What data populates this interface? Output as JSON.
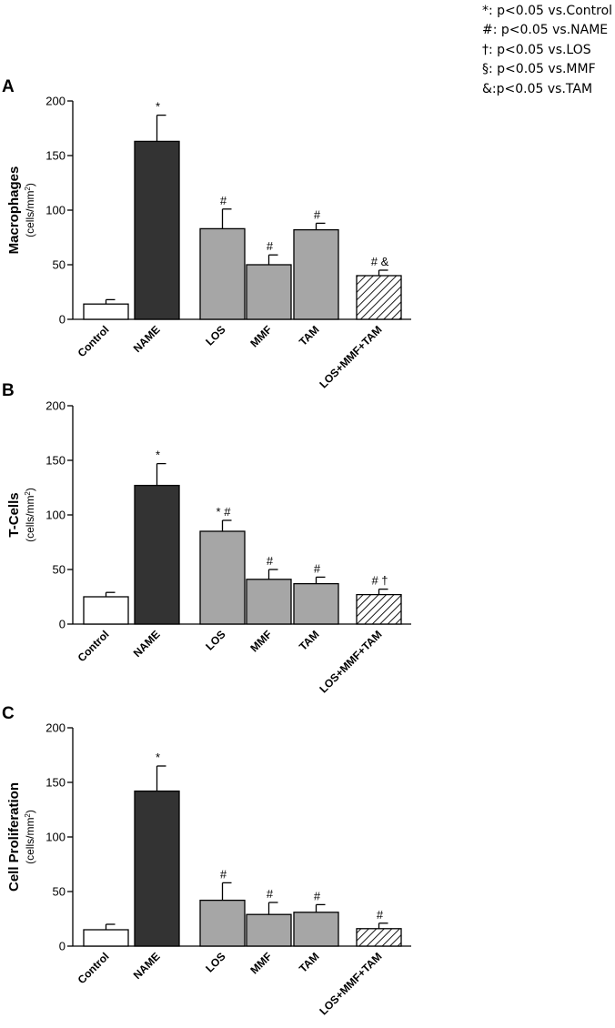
{
  "legend": [
    "*: p<0.05 vs.Control",
    "#: p<0.05 vs.NAME",
    "†: p<0.05 vs.LOS",
    "§: p<0.05 vs.MMF",
    "&:p<0.05 vs.TAM"
  ],
  "colors": {
    "axis": "#000000",
    "bar_white": "#ffffff",
    "bar_dark": "#333333",
    "bar_gray": "#a6a6a6",
    "bar_hatched": "hatched"
  },
  "chart_data": [
    {
      "type": "bar",
      "panel": "A",
      "ylabel": "Macrophages",
      "yunit_pre": "(cells/mm",
      "yunit_sup": "2",
      "yunit_post": ")",
      "ylim": [
        0,
        200
      ],
      "yticks": [
        0,
        50,
        100,
        150,
        200
      ],
      "categories": [
        "Control",
        "NAME",
        "LOS",
        "MMF",
        "TAM",
        "LOS+MMF+TAM"
      ],
      "values": [
        14,
        163,
        83,
        50,
        82,
        40
      ],
      "errors": [
        4,
        24,
        18,
        9,
        6,
        5
      ],
      "fills": [
        "white",
        "dark",
        "gray",
        "gray",
        "gray",
        "hatched"
      ],
      "sig": [
        "",
        "*",
        "#",
        "#",
        "#",
        "# &"
      ]
    },
    {
      "type": "bar",
      "panel": "B",
      "ylabel": "T-Cells",
      "yunit_pre": "(cells/mm",
      "yunit_sup": "2",
      "yunit_post": ")",
      "ylim": [
        0,
        200
      ],
      "yticks": [
        0,
        50,
        100,
        150,
        200
      ],
      "categories": [
        "Control",
        "NAME",
        "LOS",
        "MMF",
        "TAM",
        "LOS+MMF+TAM"
      ],
      "values": [
        25,
        127,
        85,
        41,
        37,
        27
      ],
      "errors": [
        4,
        20,
        10,
        9,
        6,
        5
      ],
      "fills": [
        "white",
        "dark",
        "gray",
        "gray",
        "gray",
        "hatched"
      ],
      "sig": [
        "",
        "*",
        "* #",
        "#",
        "#",
        "# †"
      ]
    },
    {
      "type": "bar",
      "panel": "C",
      "ylabel": "Cell Proliferation",
      "yunit_pre": "(cells/mm",
      "yunit_sup": "2",
      "yunit_post": ")",
      "ylim": [
        0,
        200
      ],
      "yticks": [
        0,
        50,
        100,
        150,
        200
      ],
      "categories": [
        "Control",
        "NAME",
        "LOS",
        "MMF",
        "TAM",
        "LOS+MMF+TAM"
      ],
      "values": [
        15,
        142,
        42,
        29,
        31,
        16
      ],
      "errors": [
        5,
        23,
        16,
        11,
        7,
        5
      ],
      "fills": [
        "white",
        "dark",
        "gray",
        "gray",
        "gray",
        "hatched"
      ],
      "sig": [
        "",
        "*",
        "#",
        "#",
        "#",
        "#"
      ]
    }
  ]
}
